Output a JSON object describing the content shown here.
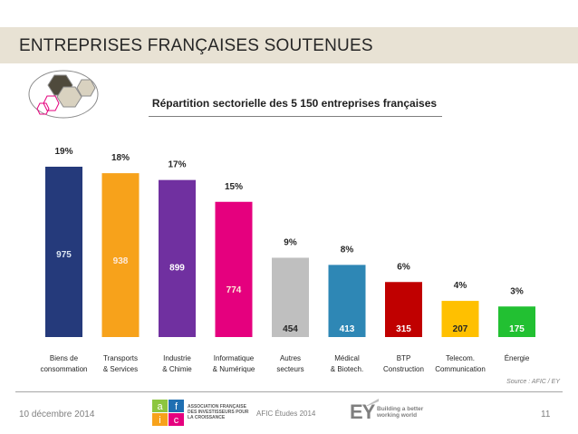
{
  "header": {
    "title": "ENTREPRISES FRANÇAISES SOUTENUES"
  },
  "chart_data": {
    "type": "bar",
    "title": "Répartition sectorielle des 5 150 entreprises françaises",
    "categories": [
      [
        "Biens de",
        "consommation"
      ],
      [
        "Transports",
        "& Services"
      ],
      [
        "Industrie",
        "& Chimie"
      ],
      [
        "Informatique",
        "& Numérique"
      ],
      [
        "Autres",
        "secteurs"
      ],
      [
        "Médical",
        "& Biotech."
      ],
      [
        "BTP",
        "Construction"
      ],
      [
        "Telecom.",
        "Communication"
      ],
      [
        "Énergie"
      ]
    ],
    "values": [
      975,
      938,
      899,
      774,
      454,
      413,
      315,
      207,
      175
    ],
    "percent_labels": [
      "19%",
      "18%",
      "17%",
      "15%",
      "9%",
      "8%",
      "6%",
      "4%",
      "3%"
    ],
    "colors": [
      "#253a7b",
      "#f7a21b",
      "#7030a0",
      "#e5007e",
      "#bfbfbf",
      "#2e87b5",
      "#c00000",
      "#ffc000",
      "#22c032"
    ],
    "value_label_colors": [
      "#dce6f2",
      "#fde9d9",
      "#ffffff",
      "#fde9d9",
      "#262626",
      "#ffffff",
      "#ffffff",
      "#262626",
      "#ffffff"
    ],
    "ylim": [
      0,
      1000
    ],
    "xlabel": "",
    "ylabel": ""
  },
  "source": "Source : AFIC / EY",
  "footer": {
    "date": "10 décembre 2014",
    "center": "AFIC Études 2014",
    "page": "11",
    "afic_letters": [
      "a",
      "f",
      "i",
      "c"
    ],
    "afic_text": "ASSOCIATION FRANÇAISE DES INVESTISSEURS POUR LA CROISSANCE",
    "ey_mark": "EY",
    "ey_tagline": "Building a better working world"
  },
  "colors": {
    "header_bg": "#e8e2d4",
    "hex_dark": "#4f4a3c",
    "hex_light": "#d9d2c0",
    "hex_pink": "#e5007e"
  }
}
